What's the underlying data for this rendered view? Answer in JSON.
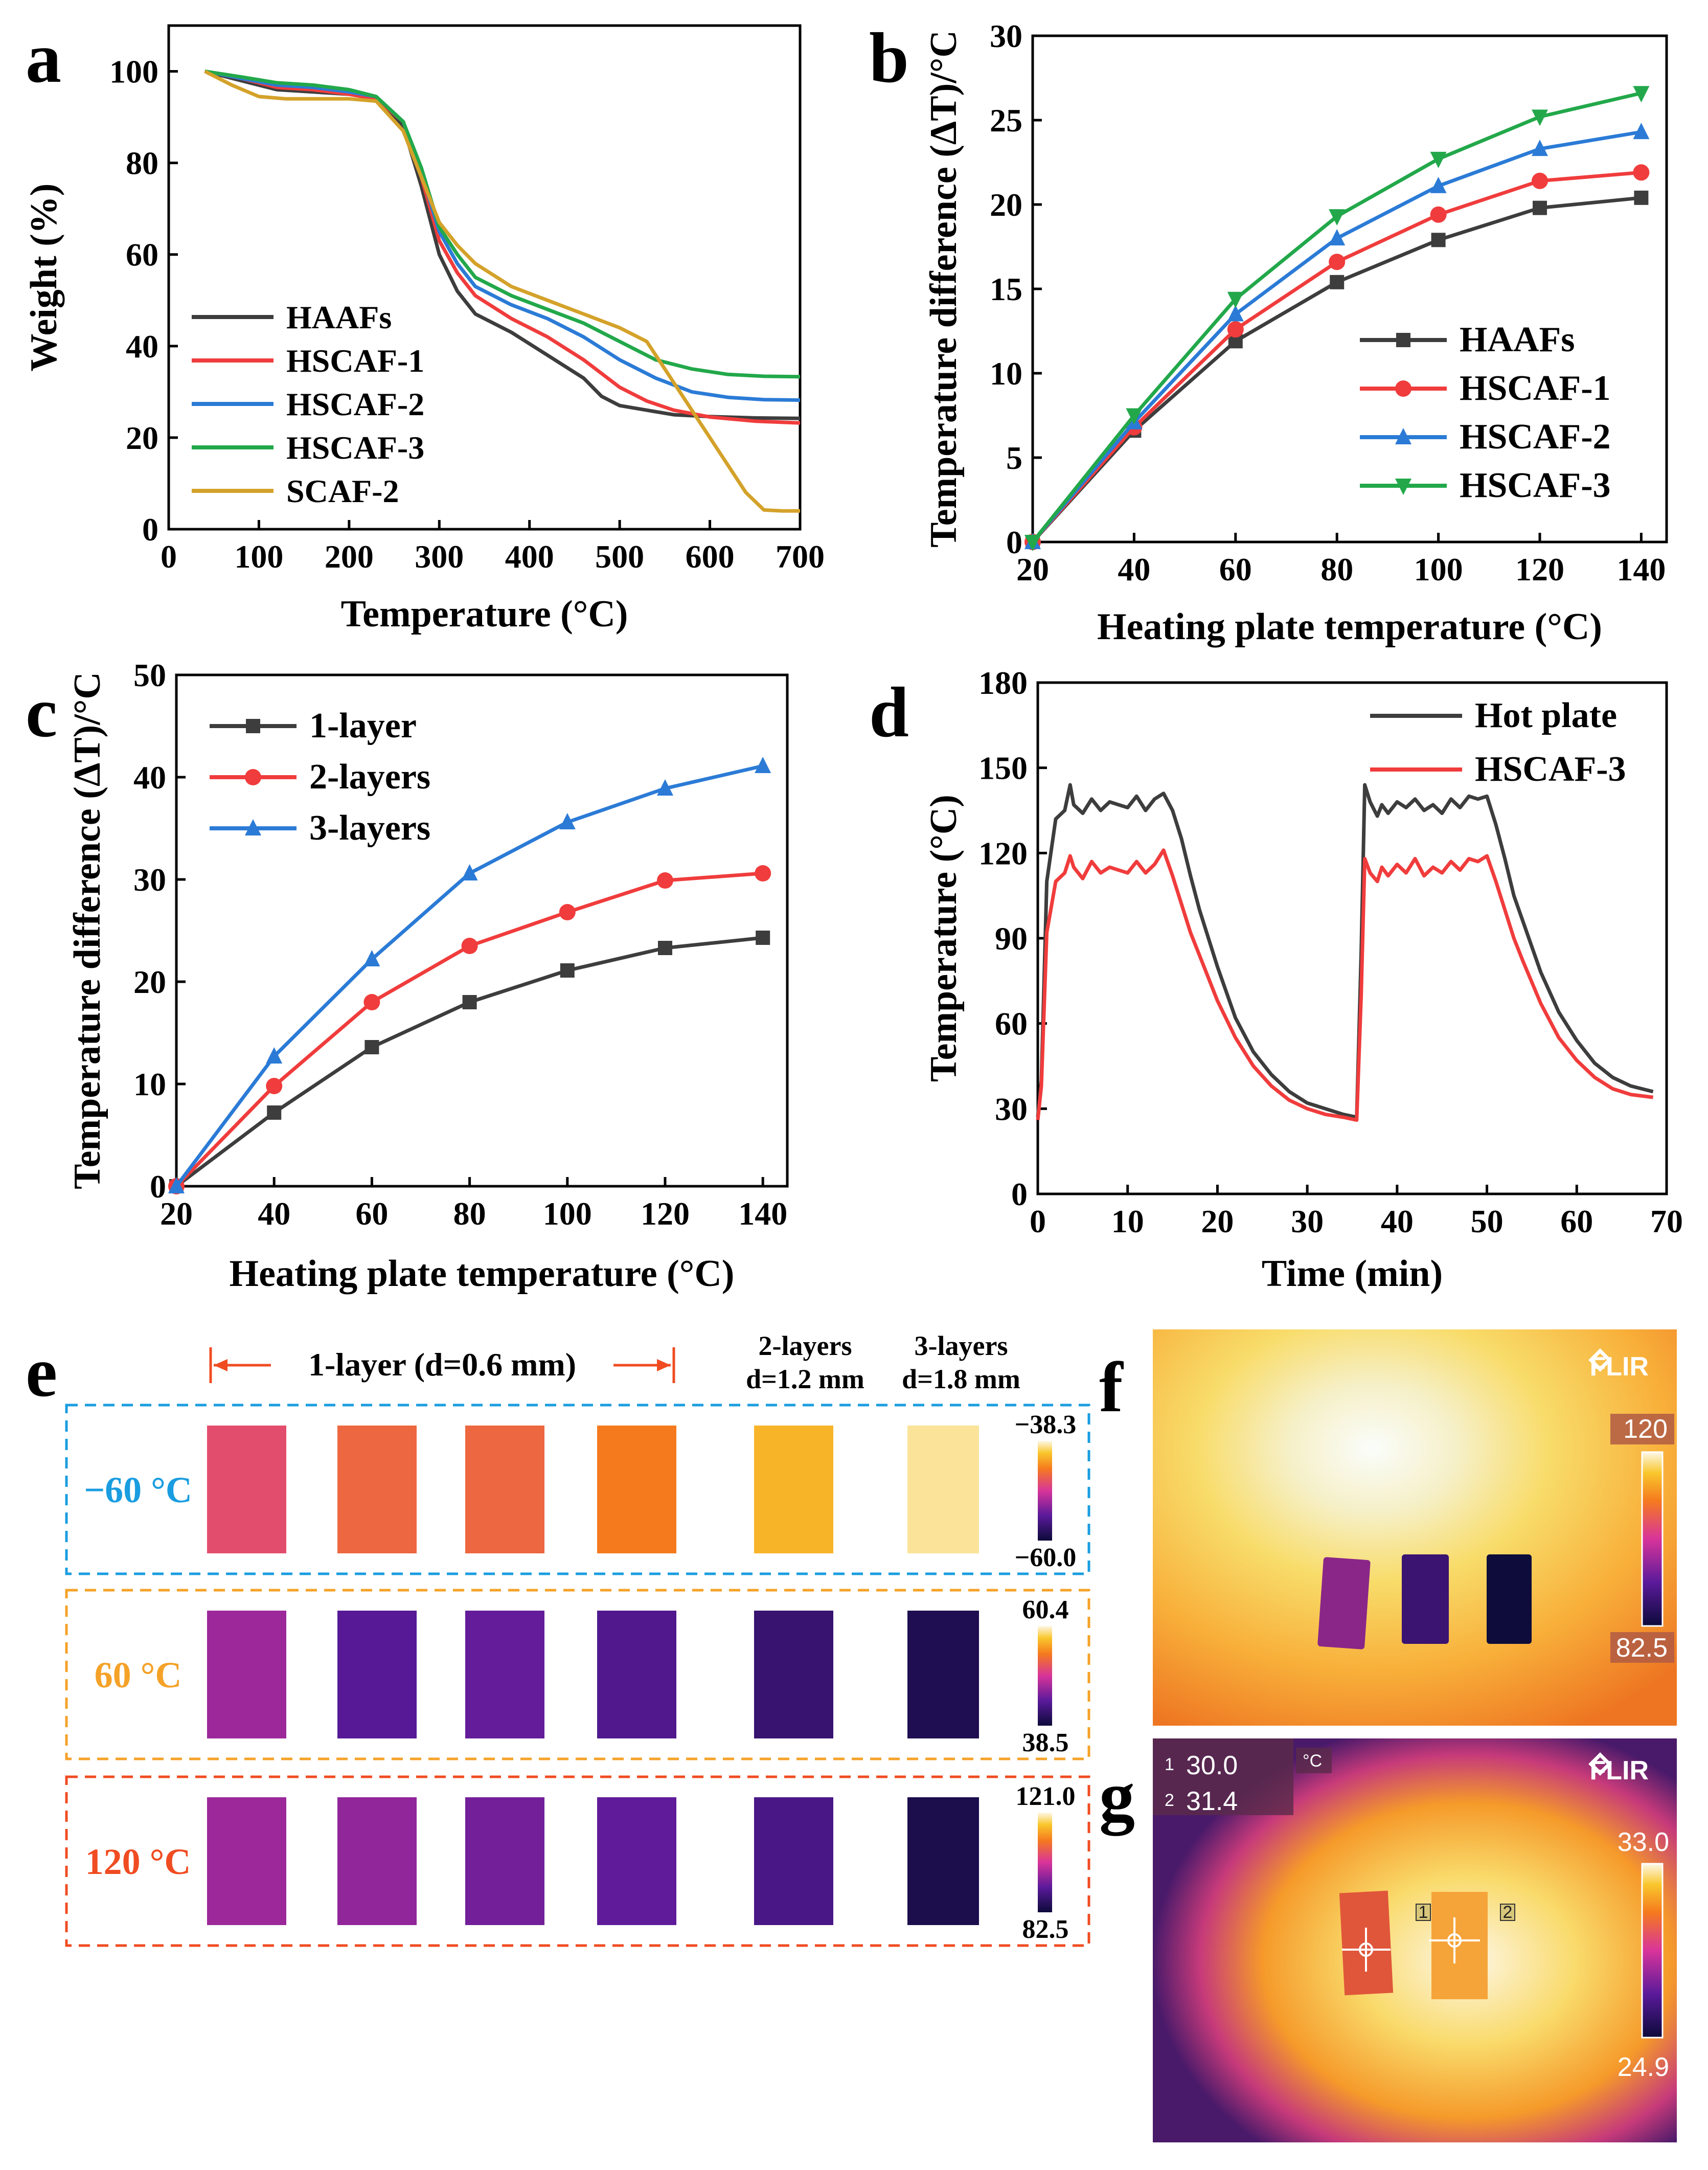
{
  "chart_data": [
    {
      "panel": "a",
      "type": "line",
      "xlabel": "Temperature (°C)",
      "ylabel": "Weight (%)",
      "xlim": [
        0,
        700
      ],
      "ylim": [
        0,
        110
      ],
      "xticks": [
        0,
        100,
        200,
        300,
        400,
        500,
        600,
        700
      ],
      "yticks": [
        0,
        20,
        40,
        60,
        80,
        100
      ],
      "legend_position": "lower-left",
      "series": [
        {
          "name": "HAAFs",
          "color": "#3d3d3d",
          "x": [
            40,
            80,
            120,
            160,
            200,
            230,
            260,
            280,
            300,
            320,
            340,
            380,
            420,
            460,
            480,
            500,
            530,
            560,
            600,
            650,
            700
          ],
          "y": [
            100,
            98,
            96,
            95.5,
            95,
            94,
            88,
            75,
            60,
            52,
            47,
            43,
            38,
            33,
            29,
            27,
            26,
            25,
            24.6,
            24.3,
            24.2
          ]
        },
        {
          "name": "HSCAF-1",
          "color": "#f03c3c",
          "x": [
            40,
            80,
            120,
            160,
            200,
            230,
            260,
            280,
            300,
            320,
            340,
            380,
            420,
            460,
            500,
            530,
            560,
            600,
            650,
            700
          ],
          "y": [
            100,
            98.5,
            96.5,
            96,
            95,
            94,
            89,
            77,
            63,
            56,
            51,
            46,
            42,
            37,
            31,
            28,
            26,
            24.5,
            23.6,
            23.2
          ]
        },
        {
          "name": "HSCAF-2",
          "color": "#2b7bd6",
          "x": [
            40,
            80,
            120,
            160,
            200,
            230,
            260,
            280,
            300,
            320,
            340,
            380,
            420,
            460,
            500,
            540,
            580,
            620,
            660,
            700
          ],
          "y": [
            100,
            98.5,
            97,
            96.5,
            95.5,
            94.5,
            89,
            78,
            65,
            58,
            53,
            49,
            46,
            42,
            37,
            33,
            30,
            28.8,
            28.3,
            28.2
          ]
        },
        {
          "name": "HSCAF-3",
          "color": "#22a84a",
          "x": [
            40,
            80,
            120,
            160,
            200,
            230,
            260,
            280,
            300,
            320,
            340,
            380,
            420,
            460,
            500,
            540,
            580,
            620,
            660,
            700
          ],
          "y": [
            100,
            98.8,
            97.5,
            97,
            96,
            94.5,
            89,
            79,
            66,
            60,
            55,
            51,
            48,
            45,
            41,
            37,
            35,
            33.8,
            33.4,
            33.3
          ]
        },
        {
          "name": "SCAF-2",
          "color": "#d4a22a",
          "x": [
            40,
            70,
            100,
            130,
            160,
            200,
            230,
            260,
            280,
            300,
            320,
            340,
            380,
            420,
            460,
            500,
            530,
            550,
            580,
            610,
            640,
            660,
            680,
            700
          ],
          "y": [
            100,
            97,
            94.5,
            94,
            94,
            94,
            93.5,
            87,
            77,
            67,
            62,
            58,
            53,
            50,
            47,
            44,
            41,
            35,
            26,
            17,
            8,
            4.2,
            4,
            4
          ]
        }
      ]
    },
    {
      "panel": "b",
      "type": "line",
      "xlabel": "Heating plate temperature (°C)",
      "ylabel": "Temperature difference (ΔT)/°C",
      "xlim": [
        20,
        145
      ],
      "ylim": [
        0,
        30
      ],
      "xticks": [
        20,
        40,
        60,
        80,
        100,
        120,
        140
      ],
      "yticks": [
        0,
        5,
        10,
        15,
        20,
        25,
        30
      ],
      "legend_position": "lower-right",
      "x": [
        20,
        40,
        60,
        80,
        100,
        120,
        140
      ],
      "series": [
        {
          "name": "HAAFs",
          "color": "#3d3d3d",
          "marker": "square",
          "values": [
            0,
            6.6,
            11.9,
            15.4,
            17.9,
            19.8,
            20.4
          ]
        },
        {
          "name": "HSCAF-1",
          "color": "#f03c3c",
          "marker": "circle",
          "values": [
            0,
            6.8,
            12.6,
            16.6,
            19.4,
            21.4,
            21.9
          ]
        },
        {
          "name": "HSCAF-2",
          "color": "#2b7bd6",
          "marker": "triangle-up",
          "values": [
            0,
            7.1,
            13.5,
            18.0,
            21.1,
            23.3,
            24.3
          ]
        },
        {
          "name": "HSCAF-3",
          "color": "#22a84a",
          "marker": "triangle-down",
          "values": [
            0,
            7.5,
            14.4,
            19.3,
            22.7,
            25.2,
            26.6
          ]
        }
      ]
    },
    {
      "panel": "c",
      "type": "line",
      "xlabel": "Heating plate temperature (°C)",
      "ylabel": "Temperature difference (ΔT)/°C",
      "xlim": [
        20,
        145
      ],
      "ylim": [
        0,
        50
      ],
      "xticks": [
        20,
        40,
        60,
        80,
        100,
        120,
        140
      ],
      "yticks": [
        0,
        10,
        20,
        30,
        40,
        50
      ],
      "legend_position": "top-left",
      "x": [
        20,
        40,
        60,
        80,
        100,
        120,
        140
      ],
      "series": [
        {
          "name": "1-layer",
          "color": "#3d3d3d",
          "marker": "square",
          "values": [
            0,
            7.2,
            13.6,
            18.0,
            21.1,
            23.3,
            24.3
          ]
        },
        {
          "name": "2-layers",
          "color": "#f03c3c",
          "marker": "circle",
          "values": [
            0,
            9.8,
            18.0,
            23.5,
            26.8,
            29.9,
            30.6
          ]
        },
        {
          "name": "3-layers",
          "color": "#2b7bd6",
          "marker": "triangle-up",
          "values": [
            0,
            12.7,
            22.2,
            30.6,
            35.6,
            38.9,
            41.1
          ]
        }
      ]
    },
    {
      "panel": "d",
      "type": "line",
      "xlabel": "Time (min)",
      "ylabel": "Temperature (°C)",
      "xlim": [
        0,
        70
      ],
      "ylim": [
        0,
        180
      ],
      "xticks": [
        0,
        10,
        20,
        30,
        40,
        50,
        60,
        70
      ],
      "yticks": [
        0,
        30,
        60,
        90,
        120,
        150,
        180
      ],
      "legend_position": "top-right",
      "series": [
        {
          "name": "Hot plate",
          "color": "#3d3d3d",
          "x": [
            0,
            0.4,
            1,
            2,
            3,
            3.6,
            4,
            5,
            6,
            7,
            8,
            9,
            10,
            11,
            12,
            13,
            14,
            15,
            16,
            17,
            18,
            20,
            22,
            24,
            26,
            28,
            30,
            32,
            34,
            35.5,
            36,
            36.4,
            37,
            37.8,
            38.3,
            39,
            40,
            41,
            42,
            43,
            44,
            45,
            46,
            47,
            48,
            49,
            50,
            51,
            52,
            53,
            54,
            56,
            58,
            60,
            62,
            64,
            66,
            68.5
          ],
          "y": [
            27,
            40,
            110,
            132,
            135,
            144,
            137,
            134,
            139,
            135,
            138,
            137,
            136,
            140,
            135,
            139,
            141,
            135,
            125,
            112,
            100,
            80,
            62,
            50,
            42,
            36,
            32,
            30,
            28,
            27,
            85,
            144,
            138,
            133,
            137,
            134,
            138,
            136,
            139,
            135,
            137,
            134,
            139,
            136,
            140,
            139,
            140,
            130,
            118,
            105,
            96,
            78,
            64,
            54,
            46,
            41,
            38,
            36
          ]
        },
        {
          "name": "HSCAF-3",
          "color": "#f03c3c",
          "x": [
            0,
            0.4,
            1,
            2,
            3,
            3.6,
            4,
            5,
            6,
            7,
            8,
            9,
            10,
            11,
            12,
            13,
            14,
            15,
            16,
            17,
            18,
            20,
            22,
            24,
            26,
            28,
            30,
            32,
            34,
            35.5,
            36,
            36.4,
            37,
            37.8,
            38.3,
            39,
            40,
            41,
            42,
            43,
            44,
            45,
            46,
            47,
            48,
            49,
            50,
            51,
            52,
            53,
            54,
            56,
            58,
            60,
            62,
            64,
            66,
            68.5
          ],
          "y": [
            26,
            38,
            92,
            110,
            113,
            119,
            115,
            111,
            117,
            113,
            115,
            114,
            113,
            117,
            113,
            116,
            121,
            112,
            102,
            92,
            84,
            68,
            55,
            45,
            38,
            33,
            30,
            28,
            27,
            26,
            70,
            118,
            113,
            110,
            115,
            112,
            116,
            113,
            118,
            112,
            115,
            113,
            117,
            114,
            118,
            117,
            119,
            110,
            100,
            90,
            82,
            67,
            55,
            47,
            41,
            37,
            35,
            34
          ]
        }
      ]
    },
    {
      "panel": "e",
      "type": "heatmap",
      "header_1layer": "1-layer (d=0.6 mm)",
      "header_2layers": [
        "2-layers",
        "d=1.2 mm"
      ],
      "header_3layers": [
        "3-layers",
        "d=1.8 mm"
      ],
      "rows": [
        {
          "label": "−60 °C",
          "color": "#1a9de0",
          "cb_max": "−38.3",
          "cb_min": "−60.0",
          "sample_levels": [
            0.58,
            0.66,
            0.66,
            0.72,
            0.84,
            0.95
          ]
        },
        {
          "label": "60 °C",
          "color": "#f5a228",
          "cb_max": "60.4",
          "cb_min": "38.5",
          "sample_levels": [
            0.38,
            0.24,
            0.27,
            0.22,
            0.14,
            0.06
          ]
        },
        {
          "label": "120 °C",
          "color": "#f04c22",
          "cb_max": "121.0",
          "cb_min": "82.5",
          "sample_levels": [
            0.38,
            0.36,
            0.3,
            0.26,
            0.2,
            0.05
          ]
        }
      ]
    },
    {
      "panel": "f",
      "type": "heatmap",
      "brand": "FLIR",
      "cb_max": "120",
      "cb_min": "82.5"
    },
    {
      "panel": "g",
      "type": "heatmap",
      "brand": "FLIR",
      "unit": "°C",
      "spots": [
        {
          "id": "1",
          "value": "30.0"
        },
        {
          "id": "2",
          "value": "31.4"
        }
      ],
      "cb_max": "33.0",
      "cb_min": "24.9"
    }
  ],
  "panel_letters": {
    "a": "a",
    "b": "b",
    "c": "c",
    "d": "d",
    "e": "e",
    "f": "f",
    "g": "g"
  }
}
